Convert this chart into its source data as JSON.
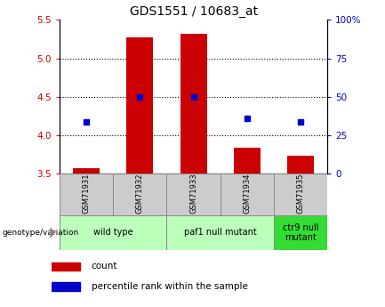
{
  "title": "GDS1551 / 10683_at",
  "samples": [
    "GSM71931",
    "GSM71932",
    "GSM71933",
    "GSM71934",
    "GSM71935"
  ],
  "bar_values": [
    3.57,
    5.27,
    5.32,
    3.83,
    3.73
  ],
  "dot_values": [
    4.17,
    4.5,
    4.5,
    4.22,
    4.17
  ],
  "bar_bottom": 3.5,
  "ylim_left": [
    3.5,
    5.5
  ],
  "ylim_right": [
    0,
    100
  ],
  "yticks_left": [
    3.5,
    4.0,
    4.5,
    5.0,
    5.5
  ],
  "yticks_right": [
    0,
    25,
    50,
    75,
    100
  ],
  "ytick_labels_right": [
    "0",
    "25",
    "50",
    "75",
    "100%"
  ],
  "bar_color": "#cc0000",
  "dot_color": "#0000cc",
  "group_defs": [
    {
      "label": "wild type",
      "start": 0,
      "end": 1,
      "color": "#bbffbb"
    },
    {
      "label": "paf1 null mutant",
      "start": 2,
      "end": 3,
      "color": "#bbffbb"
    },
    {
      "label": "ctr9 null\nmutant",
      "start": 4,
      "end": 4,
      "color": "#33dd33"
    }
  ],
  "sample_box_color": "#cccccc",
  "bar_width": 0.5,
  "genotype_label": "genotype/variation",
  "legend_count_label": "count",
  "legend_pct_label": "percentile rank within the sample"
}
